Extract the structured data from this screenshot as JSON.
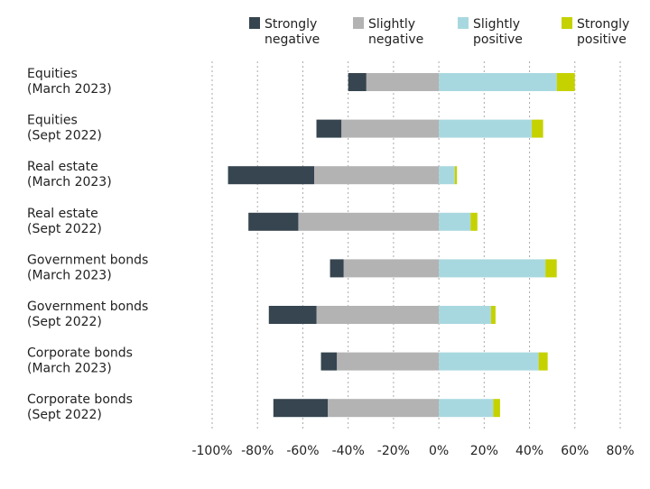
{
  "chart_data": {
    "type": "bar",
    "orientation": "horizontal",
    "stacked": "diverging",
    "categories": [
      "Equities\n(March 2023)",
      "Equities\n(Sept 2022)",
      "Real estate\n(March 2023)",
      "Real estate\n(Sept 2022)",
      "Government bonds\n(March 2023)",
      "Government bonds\n(Sept 2022)",
      "Corporate bonds\n(March 2023)",
      "Corporate bonds\n(Sept 2022)"
    ],
    "series": [
      {
        "name": "Strongly\nnegative",
        "color": "#36454f",
        "values": [
          -8,
          -11,
          -38,
          -22,
          -6,
          -21,
          -7,
          -24
        ]
      },
      {
        "name": "Slightly\nnegative",
        "color": "#b3b3b3",
        "values": [
          -32,
          -43,
          -55,
          -62,
          -42,
          -54,
          -45,
          -49
        ]
      },
      {
        "name": "Slightly\npositive",
        "color": "#a8d8df",
        "values": [
          52,
          41,
          7,
          14,
          47,
          23,
          44,
          24
        ]
      },
      {
        "name": "Strongly\npositive",
        "color": "#c5d200",
        "values": [
          8,
          5,
          1,
          3,
          5,
          2,
          4,
          3
        ]
      }
    ],
    "xlim": [
      -100,
      80
    ],
    "xticks": [
      {
        "value": -100,
        "label": "-100%"
      },
      {
        "value": -80,
        "label": "-80%"
      },
      {
        "value": -60,
        "label": "-60%"
      },
      {
        "value": -40,
        "label": "-40%"
      },
      {
        "value": -20,
        "label": "-20%"
      },
      {
        "value": 0,
        "label": "0%"
      },
      {
        "value": 20,
        "label": "20%"
      },
      {
        "value": 40,
        "label": "40%"
      },
      {
        "value": 60,
        "label": "60%"
      },
      {
        "value": 80,
        "label": "80%"
      }
    ],
    "grid": true,
    "legend": "top"
  }
}
